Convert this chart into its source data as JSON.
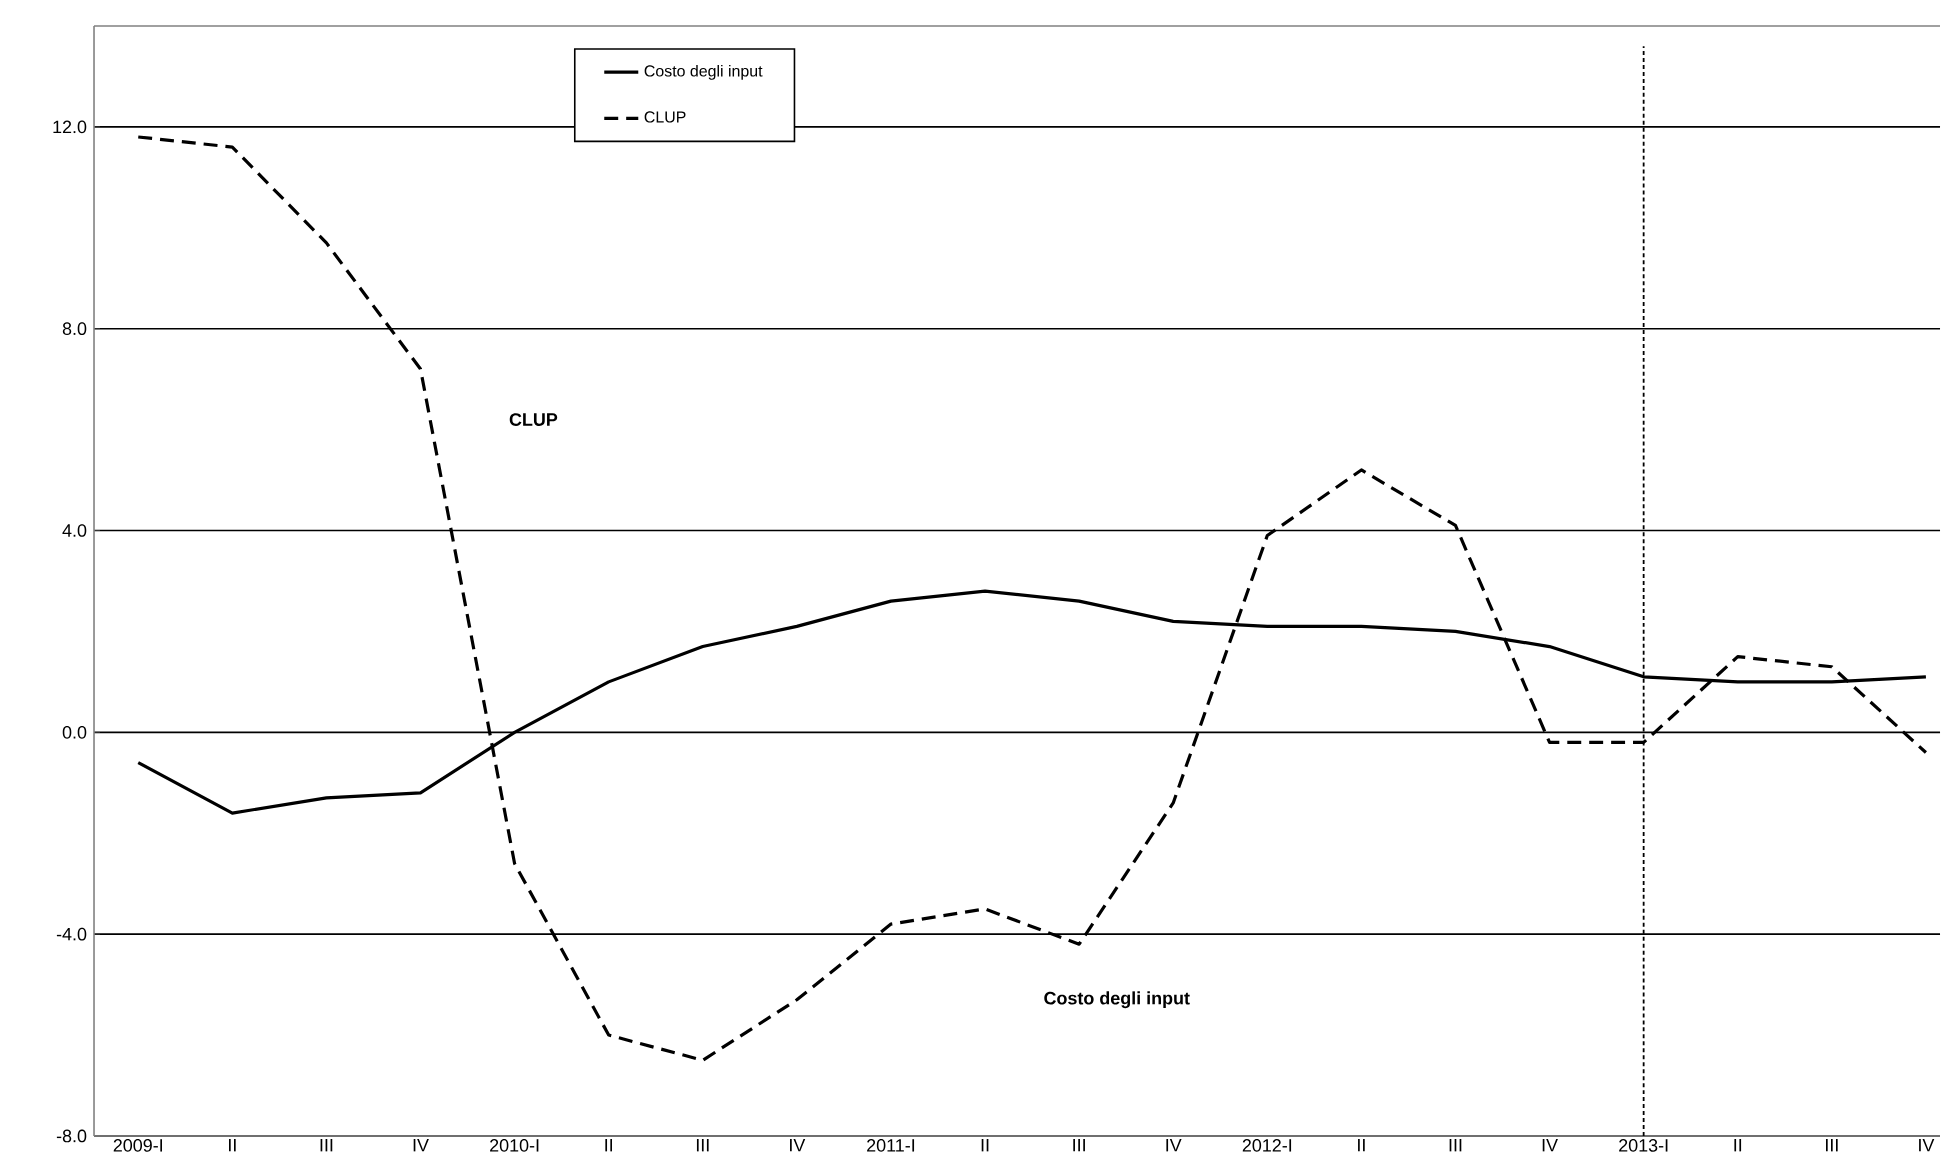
{
  "chart_data": {
    "type": "line",
    "categories": [
      "2009-I",
      "II",
      "III",
      "IV",
      "2010-I",
      "II",
      "III",
      "IV",
      "2011-I",
      "II",
      "III",
      "IV",
      "2012-I",
      "II",
      "III",
      "IV",
      "2013-I",
      "II",
      "III",
      "IV"
    ],
    "series": [
      {
        "name": "Costo degli input",
        "color": "#000000",
        "line_style": "solid",
        "values": [
          -0.6,
          -1.6,
          -1.3,
          -1.2,
          0.0,
          1.0,
          1.7,
          2.1,
          2.6,
          2.8,
          2.6,
          2.2,
          2.1,
          2.1,
          2.0,
          1.7,
          1.1,
          1.0,
          1.0,
          1.1
        ]
      },
      {
        "name": "CLUP",
        "color": "#000000",
        "line_style": "dashed",
        "values": [
          11.8,
          11.6,
          9.7,
          7.2,
          -2.6,
          -6.0,
          -6.5,
          -5.3,
          -3.8,
          -3.5,
          -4.2,
          -1.4,
          3.9,
          5.2,
          4.1,
          -0.2,
          -0.2,
          1.5,
          1.3,
          -0.4
        ]
      }
    ],
    "ylim": [
      -8,
      14
    ],
    "yticks": [
      {
        "value": -8,
        "label": "-8.0"
      },
      {
        "value": -4,
        "label": "-4.0"
      },
      {
        "value": 0,
        "label": "0.0"
      },
      {
        "value": 4,
        "label": "4.0"
      },
      {
        "value": 8,
        "label": "8.0"
      },
      {
        "value": 12,
        "label": "12.0"
      }
    ],
    "grid": "y",
    "legend": "top",
    "marker": "none",
    "ref_lines": [
      {
        "axis": "x",
        "value": "2013-I",
        "line_style": "dotted",
        "color": "#000000"
      }
    ],
    "annotations": [
      "CLUP",
      "Costo degli input"
    ]
  }
}
